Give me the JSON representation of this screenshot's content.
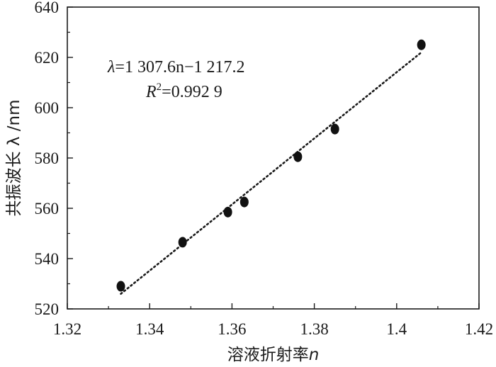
{
  "chart_data": {
    "type": "scatter",
    "xlabel": "溶液折射率",
    "xlabel_var": "n",
    "ylabel": "共振波长 λ /nm",
    "xlim": [
      1.32,
      1.42
    ],
    "ylim": [
      520,
      640
    ],
    "x_ticks": [
      "1.32",
      "1.34",
      "1.36",
      "1.38",
      "1.4",
      "1.42"
    ],
    "y_ticks": [
      "520",
      "540",
      "560",
      "580",
      "600",
      "620",
      "640"
    ],
    "points": [
      {
        "x": 1.333,
        "y": 529
      },
      {
        "x": 1.348,
        "y": 546.5
      },
      {
        "x": 1.359,
        "y": 558.5
      },
      {
        "x": 1.363,
        "y": 562.5
      },
      {
        "x": 1.376,
        "y": 580.5
      },
      {
        "x": 1.385,
        "y": 591.5
      },
      {
        "x": 1.406,
        "y": 625
      }
    ],
    "fit_line": {
      "x_start": 1.333,
      "x_end": 1.406,
      "y_start": 526,
      "y_end": 622
    },
    "equation": {
      "symbol": "λ",
      "rhs": "=1 307.6n−1 217.2",
      "r_symbol": "R",
      "r_exponent": "2",
      "r_rhs": "=0.992 9"
    },
    "grid": false,
    "legend": "none",
    "marker_color": "#111111",
    "line_color": "#1a1a1a"
  }
}
